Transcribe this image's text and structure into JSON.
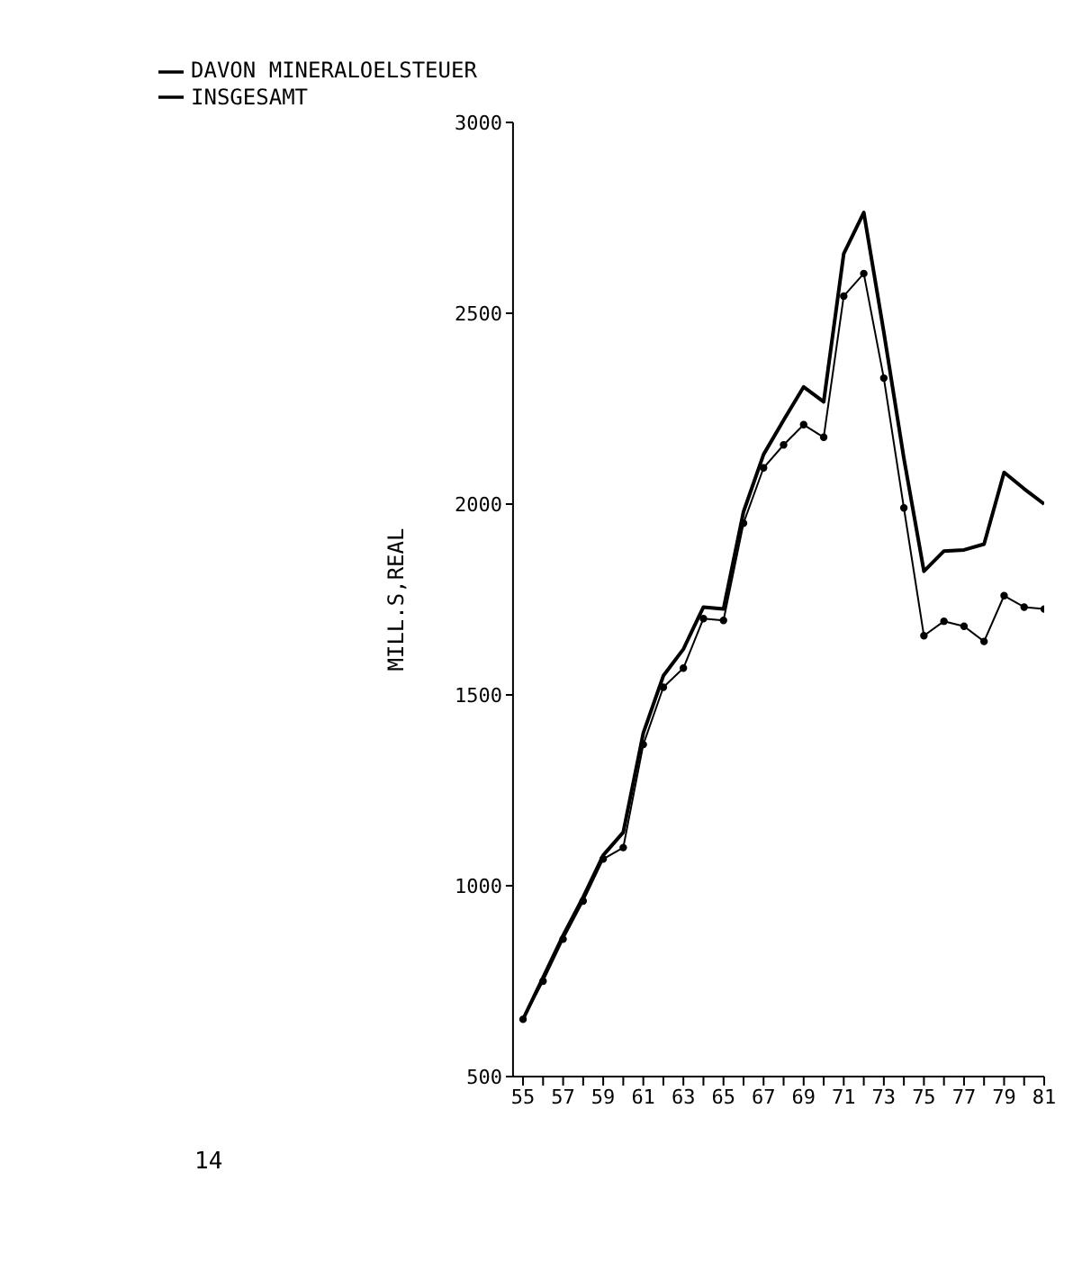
{
  "chart_data": {
    "type": "line",
    "ylabel": "MILL.S,REAL",
    "annotations": [
      "14"
    ],
    "x": [
      55,
      56,
      57,
      58,
      59,
      60,
      61,
      62,
      63,
      64,
      65,
      66,
      67,
      68,
      69,
      70,
      71,
      72,
      73,
      74,
      75,
      76,
      77,
      78,
      79,
      80,
      81
    ],
    "series": [
      {
        "name": "INSGESAMT",
        "color": "#000000",
        "marker": "none",
        "values": [
          650,
          760,
          870,
          970,
          1080,
          1140,
          1400,
          1550,
          1620,
          1730,
          1725,
          1980,
          2130,
          2220,
          2307,
          2268,
          2656,
          2764,
          2450,
          2120,
          1824,
          1877,
          1880,
          1895,
          2083,
          2040,
          2000
        ]
      },
      {
        "name": "DAVON MINERALOELSTEUER",
        "color": "#000000",
        "marker": "circle",
        "values": [
          650,
          750,
          860,
          960,
          1070,
          1100,
          1370,
          1520,
          1570,
          1700,
          1695,
          1950,
          2095,
          2155,
          2208,
          2175,
          2545,
          2604,
          2330,
          1990,
          1655,
          1693,
          1680,
          1640,
          1760,
          1730,
          1725
        ]
      }
    ],
    "xlim": [
      54.5,
      81
    ],
    "xticks": [
      55,
      {
        "value": 56,
        "label": null
      },
      57,
      {
        "value": 58,
        "label": null
      },
      59,
      {
        "value": 60,
        "label": null
      },
      61,
      {
        "value": 62,
        "label": null
      },
      63,
      {
        "value": 64,
        "label": null
      },
      65,
      {
        "value": 66,
        "label": null
      },
      67,
      {
        "value": 68,
        "label": null
      },
      69,
      {
        "value": 70,
        "label": null
      },
      71,
      {
        "value": 72,
        "label": null
      },
      73,
      {
        "value": 74,
        "label": null
      },
      75,
      {
        "value": 76,
        "label": null
      },
      77,
      {
        "value": 78,
        "label": null
      },
      79,
      {
        "value": 80,
        "label": null
      },
      81
    ],
    "ylim": [
      500,
      3000
    ],
    "yticks": [
      500,
      1000,
      1500,
      2000,
      2500,
      3000
    ],
    "grid": false,
    "legend": "top left"
  }
}
